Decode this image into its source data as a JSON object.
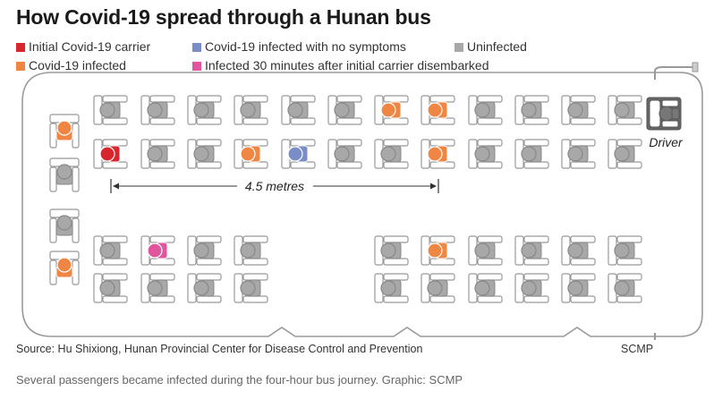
{
  "title": "How Covid-19 spread through a Hunan bus",
  "legend": [
    {
      "label": "Initial Covid-19 carrier",
      "color": "#d7262e"
    },
    {
      "label": "Covid-19 infected with no symptoms",
      "color": "#7b8dc7"
    },
    {
      "label": "Uninfected",
      "color": "#a8a8a8"
    },
    {
      "label": "Covid-19 infected",
      "color": "#f08644"
    },
    {
      "label": "Infected 30 minutes after initial carrier disembarked",
      "color": "#e0559e"
    }
  ],
  "driver_label": "Driver",
  "distance_label": "4.5 metres",
  "source": "Source: Hu Shixiong, Hunan Provincial Center for Disease Control and Prevention",
  "credit": "SCMP",
  "caption": "Several passengers became infected during the four-hour bus journey. Graphic: SCMP",
  "seat_status_colors": {
    "uninfected": "#a8a8a8",
    "carrier": "#d7262e",
    "infected": "#f08644",
    "asymptomatic": "#7b8dc7",
    "late": "#e0559e"
  },
  "seating": {
    "left_side": [
      "infected",
      "uninfected",
      "uninfected",
      "infected"
    ],
    "upper_row_1": [
      "uninfected",
      "uninfected",
      "uninfected",
      "uninfected",
      "uninfected",
      "uninfected",
      "infected",
      "infected",
      "uninfected",
      "uninfected",
      "uninfected",
      "uninfected"
    ],
    "upper_row_2": [
      "carrier",
      "uninfected",
      "uninfected",
      "infected",
      "asymptomatic",
      "uninfected",
      "uninfected",
      "infected",
      "uninfected",
      "uninfected",
      "uninfected",
      "uninfected"
    ],
    "lower_row_1": [
      "uninfected",
      "late",
      "uninfected",
      "uninfected",
      null,
      null,
      "uninfected",
      "infected",
      "uninfected",
      "uninfected",
      "uninfected",
      null,
      "uninfected"
    ],
    "lower_row_2": [
      "uninfected",
      "uninfected",
      "uninfected",
      "uninfected",
      null,
      null,
      "uninfected",
      "uninfected",
      "uninfected",
      "uninfected",
      "uninfected",
      null,
      "uninfected"
    ]
  }
}
